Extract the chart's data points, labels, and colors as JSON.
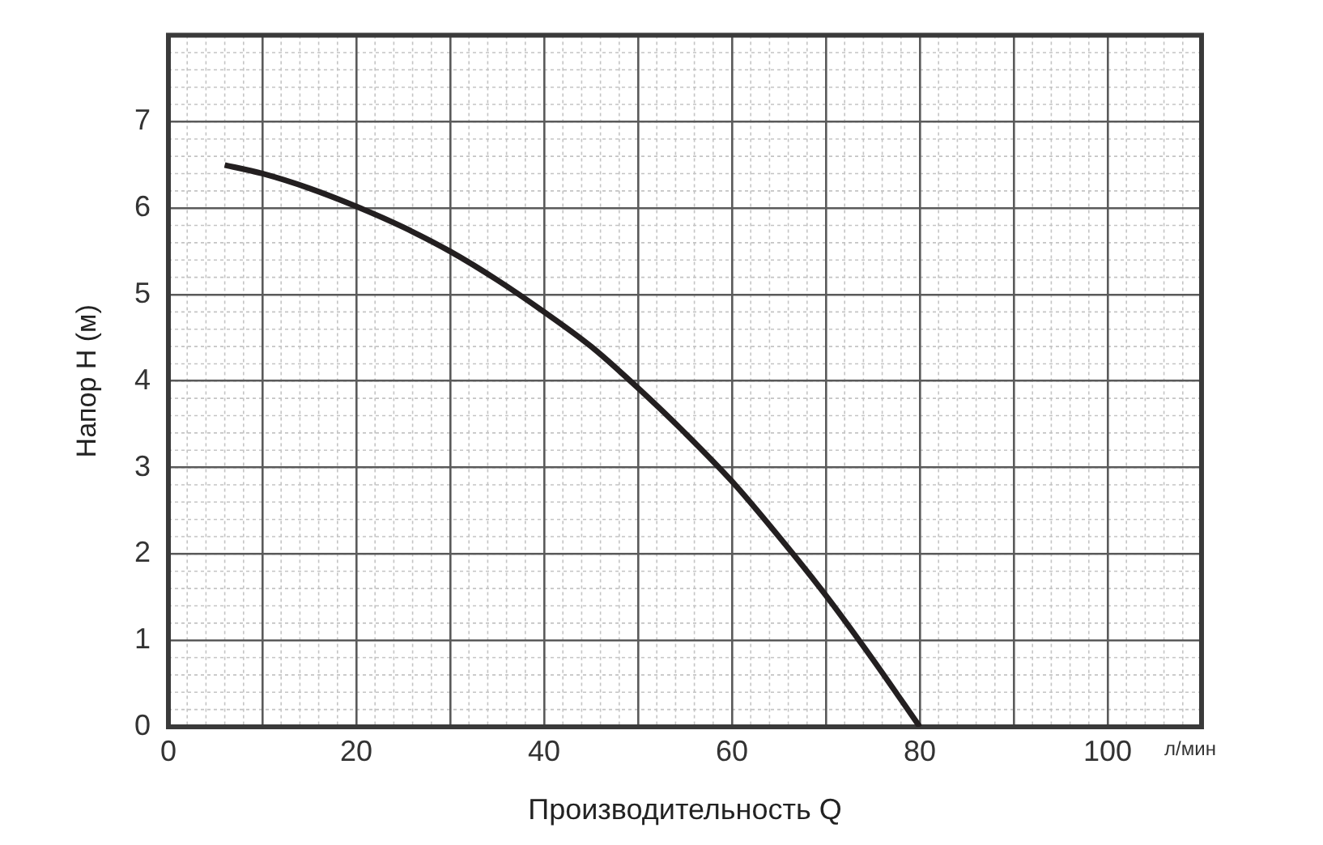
{
  "chart_data": {
    "type": "line",
    "xlabel": "Производительность Q",
    "ylabel": "Напор H (м)",
    "annotations": [
      "л/мин"
    ],
    "x": [
      6,
      10,
      15,
      20,
      25,
      30,
      35,
      40,
      45,
      50,
      55,
      60,
      65,
      70,
      75,
      80
    ],
    "values": [
      6.5,
      6.4,
      6.23,
      6.02,
      5.78,
      5.5,
      5.17,
      4.8,
      4.4,
      3.92,
      3.4,
      2.84,
      2.2,
      1.52,
      0.78,
      0
    ],
    "color": "#231f20",
    "xlim": [
      0,
      110
    ],
    "ylim": [
      0,
      8
    ],
    "xticks": [
      0,
      {
        "value": 10,
        "label": null
      },
      20,
      {
        "value": 30,
        "label": null
      },
      40,
      {
        "value": 50,
        "label": null
      },
      60,
      {
        "value": 70,
        "label": null
      },
      80,
      {
        "value": 90,
        "label": null
      },
      100
    ],
    "yticks": [
      0,
      1,
      2,
      3,
      4,
      5,
      6,
      7
    ],
    "grid": true
  }
}
